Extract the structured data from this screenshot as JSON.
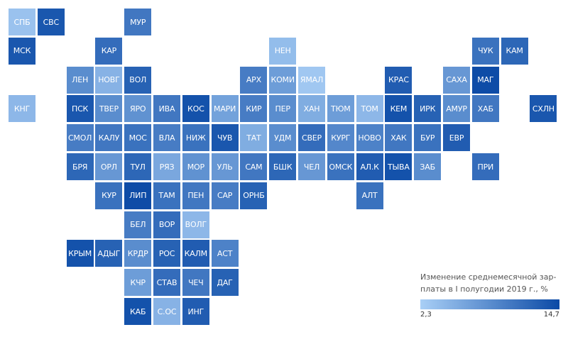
{
  "legend": {
    "title": "Изменение среднемесячной зар-платы в I полугодии 2019 г., %",
    "min_label": "2,3",
    "max_label": "14,7",
    "min_value": 2.3,
    "max_value": 14.7,
    "color_low": "#a9cff6",
    "color_high": "#0b4aa6"
  },
  "regions": [
    {
      "label": "СПБ",
      "col": 0,
      "row": 0,
      "value": 3.5
    },
    {
      "label": "СВС",
      "col": 1,
      "row": 0,
      "value": 13.5
    },
    {
      "label": "МУР",
      "col": 4,
      "row": 0,
      "value": 10.5
    },
    {
      "label": "МСК",
      "col": 0,
      "row": 1,
      "value": 13.5
    },
    {
      "label": "КАР",
      "col": 3,
      "row": 1,
      "value": 11.5
    },
    {
      "label": "НЕН",
      "col": 9,
      "row": 1,
      "value": 4.0
    },
    {
      "label": "ЧУК",
      "col": 16,
      "row": 1,
      "value": 11.0
    },
    {
      "label": "КАМ",
      "col": 17,
      "row": 1,
      "value": 12.0
    },
    {
      "label": "ЛЕН",
      "col": 2,
      "row": 2,
      "value": 8.5
    },
    {
      "label": "НОВГ",
      "col": 3,
      "row": 2,
      "value": 5.0
    },
    {
      "label": "ВОЛ",
      "col": 4,
      "row": 2,
      "value": 12.5
    },
    {
      "label": "АРХ",
      "col": 8,
      "row": 2,
      "value": 10.0
    },
    {
      "label": "КОМИ",
      "col": 9,
      "row": 2,
      "value": 7.0
    },
    {
      "label": "ЯМАЛ",
      "col": 10,
      "row": 2,
      "value": 3.0
    },
    {
      "label": "КРАС",
      "col": 13,
      "row": 2,
      "value": 13.0
    },
    {
      "label": "САХА",
      "col": 15,
      "row": 2,
      "value": 7.5
    },
    {
      "label": "МАГ",
      "col": 16,
      "row": 2,
      "value": 14.5
    },
    {
      "label": "КНГ",
      "col": 0,
      "row": 3,
      "value": 4.5
    },
    {
      "label": "ПСК",
      "col": 2,
      "row": 3,
      "value": 13.5
    },
    {
      "label": "ТВЕР",
      "col": 3,
      "row": 3,
      "value": 8.5
    },
    {
      "label": "ЯРО",
      "col": 4,
      "row": 3,
      "value": 8.0
    },
    {
      "label": "ИВА",
      "col": 5,
      "row": 3,
      "value": 10.5
    },
    {
      "label": "КОС",
      "col": 6,
      "row": 3,
      "value": 14.0
    },
    {
      "label": "МАРИ",
      "col": 7,
      "row": 3,
      "value": 6.5
    },
    {
      "label": "КИР",
      "col": 8,
      "row": 3,
      "value": 10.0
    },
    {
      "label": "ПЕР",
      "col": 9,
      "row": 3,
      "value": 8.5
    },
    {
      "label": "ХАН",
      "col": 10,
      "row": 3,
      "value": 5.5
    },
    {
      "label": "ТЮМ",
      "col": 11,
      "row": 3,
      "value": 7.0
    },
    {
      "label": "ТОМ",
      "col": 12,
      "row": 3,
      "value": 4.5
    },
    {
      "label": "КЕМ",
      "col": 13,
      "row": 3,
      "value": 14.0
    },
    {
      "label": "ИРК",
      "col": 14,
      "row": 3,
      "value": 12.5
    },
    {
      "label": "АМУР",
      "col": 15,
      "row": 3,
      "value": 8.5
    },
    {
      "label": "ХАБ",
      "col": 16,
      "row": 3,
      "value": 10.5
    },
    {
      "label": "СХЛН",
      "col": 18,
      "row": 3,
      "value": 13.5
    },
    {
      "label": "СМОЛ",
      "col": 2,
      "row": 4,
      "value": 10.0
    },
    {
      "label": "КАЛУ",
      "col": 3,
      "row": 4,
      "value": 10.5
    },
    {
      "label": "МОС",
      "col": 4,
      "row": 4,
      "value": 11.0
    },
    {
      "label": "ВЛА",
      "col": 5,
      "row": 4,
      "value": 10.0
    },
    {
      "label": "НИЖ",
      "col": 6,
      "row": 4,
      "value": 11.0
    },
    {
      "label": "ЧУВ",
      "col": 7,
      "row": 4,
      "value": 13.5
    },
    {
      "label": "ТАТ",
      "col": 8,
      "row": 4,
      "value": 5.5
    },
    {
      "label": "УДМ",
      "col": 9,
      "row": 4,
      "value": 8.5
    },
    {
      "label": "СВЕР",
      "col": 10,
      "row": 4,
      "value": 11.5
    },
    {
      "label": "КУРГ",
      "col": 11,
      "row": 4,
      "value": 9.0
    },
    {
      "label": "НОВО",
      "col": 12,
      "row": 4,
      "value": 9.5
    },
    {
      "label": "ХАК",
      "col": 13,
      "row": 4,
      "value": 10.5
    },
    {
      "label": "БУР",
      "col": 14,
      "row": 4,
      "value": 11.0
    },
    {
      "label": "ЕВР",
      "col": 15,
      "row": 4,
      "value": 13.0
    },
    {
      "label": "БРЯ",
      "col": 2,
      "row": 5,
      "value": 12.0
    },
    {
      "label": "ОРЛ",
      "col": 3,
      "row": 5,
      "value": 7.5
    },
    {
      "label": "ТУЛ",
      "col": 4,
      "row": 5,
      "value": 12.0
    },
    {
      "label": "РЯЗ",
      "col": 5,
      "row": 5,
      "value": 6.0
    },
    {
      "label": "МОР",
      "col": 6,
      "row": 5,
      "value": 8.0
    },
    {
      "label": "УЛЬ",
      "col": 7,
      "row": 5,
      "value": 7.5
    },
    {
      "label": "САМ",
      "col": 8,
      "row": 5,
      "value": 10.5
    },
    {
      "label": "БШК",
      "col": 9,
      "row": 5,
      "value": 12.0
    },
    {
      "label": "ЧЕЛ",
      "col": 10,
      "row": 5,
      "value": 7.5
    },
    {
      "label": "ОМСК",
      "col": 11,
      "row": 5,
      "value": 11.0
    },
    {
      "label": "АЛ.К",
      "col": 12,
      "row": 5,
      "value": 13.0
    },
    {
      "label": "ТЫВА",
      "col": 13,
      "row": 5,
      "value": 14.0
    },
    {
      "label": "ЗАБ",
      "col": 14,
      "row": 5,
      "value": 8.5
    },
    {
      "label": "ПРИ",
      "col": 16,
      "row": 5,
      "value": 11.5
    },
    {
      "label": "КУР",
      "col": 3,
      "row": 6,
      "value": 11.0
    },
    {
      "label": "ЛИП",
      "col": 4,
      "row": 6,
      "value": 14.5
    },
    {
      "label": "ТАМ",
      "col": 5,
      "row": 6,
      "value": 11.0
    },
    {
      "label": "ПЕН",
      "col": 6,
      "row": 6,
      "value": 10.5
    },
    {
      "label": "САР",
      "col": 7,
      "row": 6,
      "value": 10.0
    },
    {
      "label": "ОРНБ",
      "col": 8,
      "row": 6,
      "value": 12.5
    },
    {
      "label": "АЛТ",
      "col": 12,
      "row": 6,
      "value": 11.0
    },
    {
      "label": "БЕЛ",
      "col": 4,
      "row": 7,
      "value": 10.0
    },
    {
      "label": "ВОР",
      "col": 5,
      "row": 7,
      "value": 11.5
    },
    {
      "label": "ВОЛГ",
      "col": 6,
      "row": 7,
      "value": 4.5
    },
    {
      "label": "КРЫМ",
      "col": 2,
      "row": 8,
      "value": 14.0
    },
    {
      "label": "АДЫГ",
      "col": 3,
      "row": 8,
      "value": 12.5
    },
    {
      "label": "КРДР",
      "col": 4,
      "row": 8,
      "value": 8.5
    },
    {
      "label": "РОС",
      "col": 5,
      "row": 8,
      "value": 12.5
    },
    {
      "label": "КАЛМ",
      "col": 6,
      "row": 8,
      "value": 13.0
    },
    {
      "label": "АСТ",
      "col": 7,
      "row": 8,
      "value": 9.5
    },
    {
      "label": "КЧР",
      "col": 4,
      "row": 9,
      "value": 7.0
    },
    {
      "label": "СТАВ",
      "col": 5,
      "row": 9,
      "value": 11.5
    },
    {
      "label": "ЧЕЧ",
      "col": 6,
      "row": 9,
      "value": 10.5
    },
    {
      "label": "ДАГ",
      "col": 7,
      "row": 9,
      "value": 12.5
    },
    {
      "label": "КАБ",
      "col": 4,
      "row": 10,
      "value": 14.0
    },
    {
      "label": "С.ОС",
      "col": 5,
      "row": 10,
      "value": 5.0
    },
    {
      "label": "ИНГ",
      "col": 6,
      "row": 10,
      "value": 13.0
    }
  ]
}
